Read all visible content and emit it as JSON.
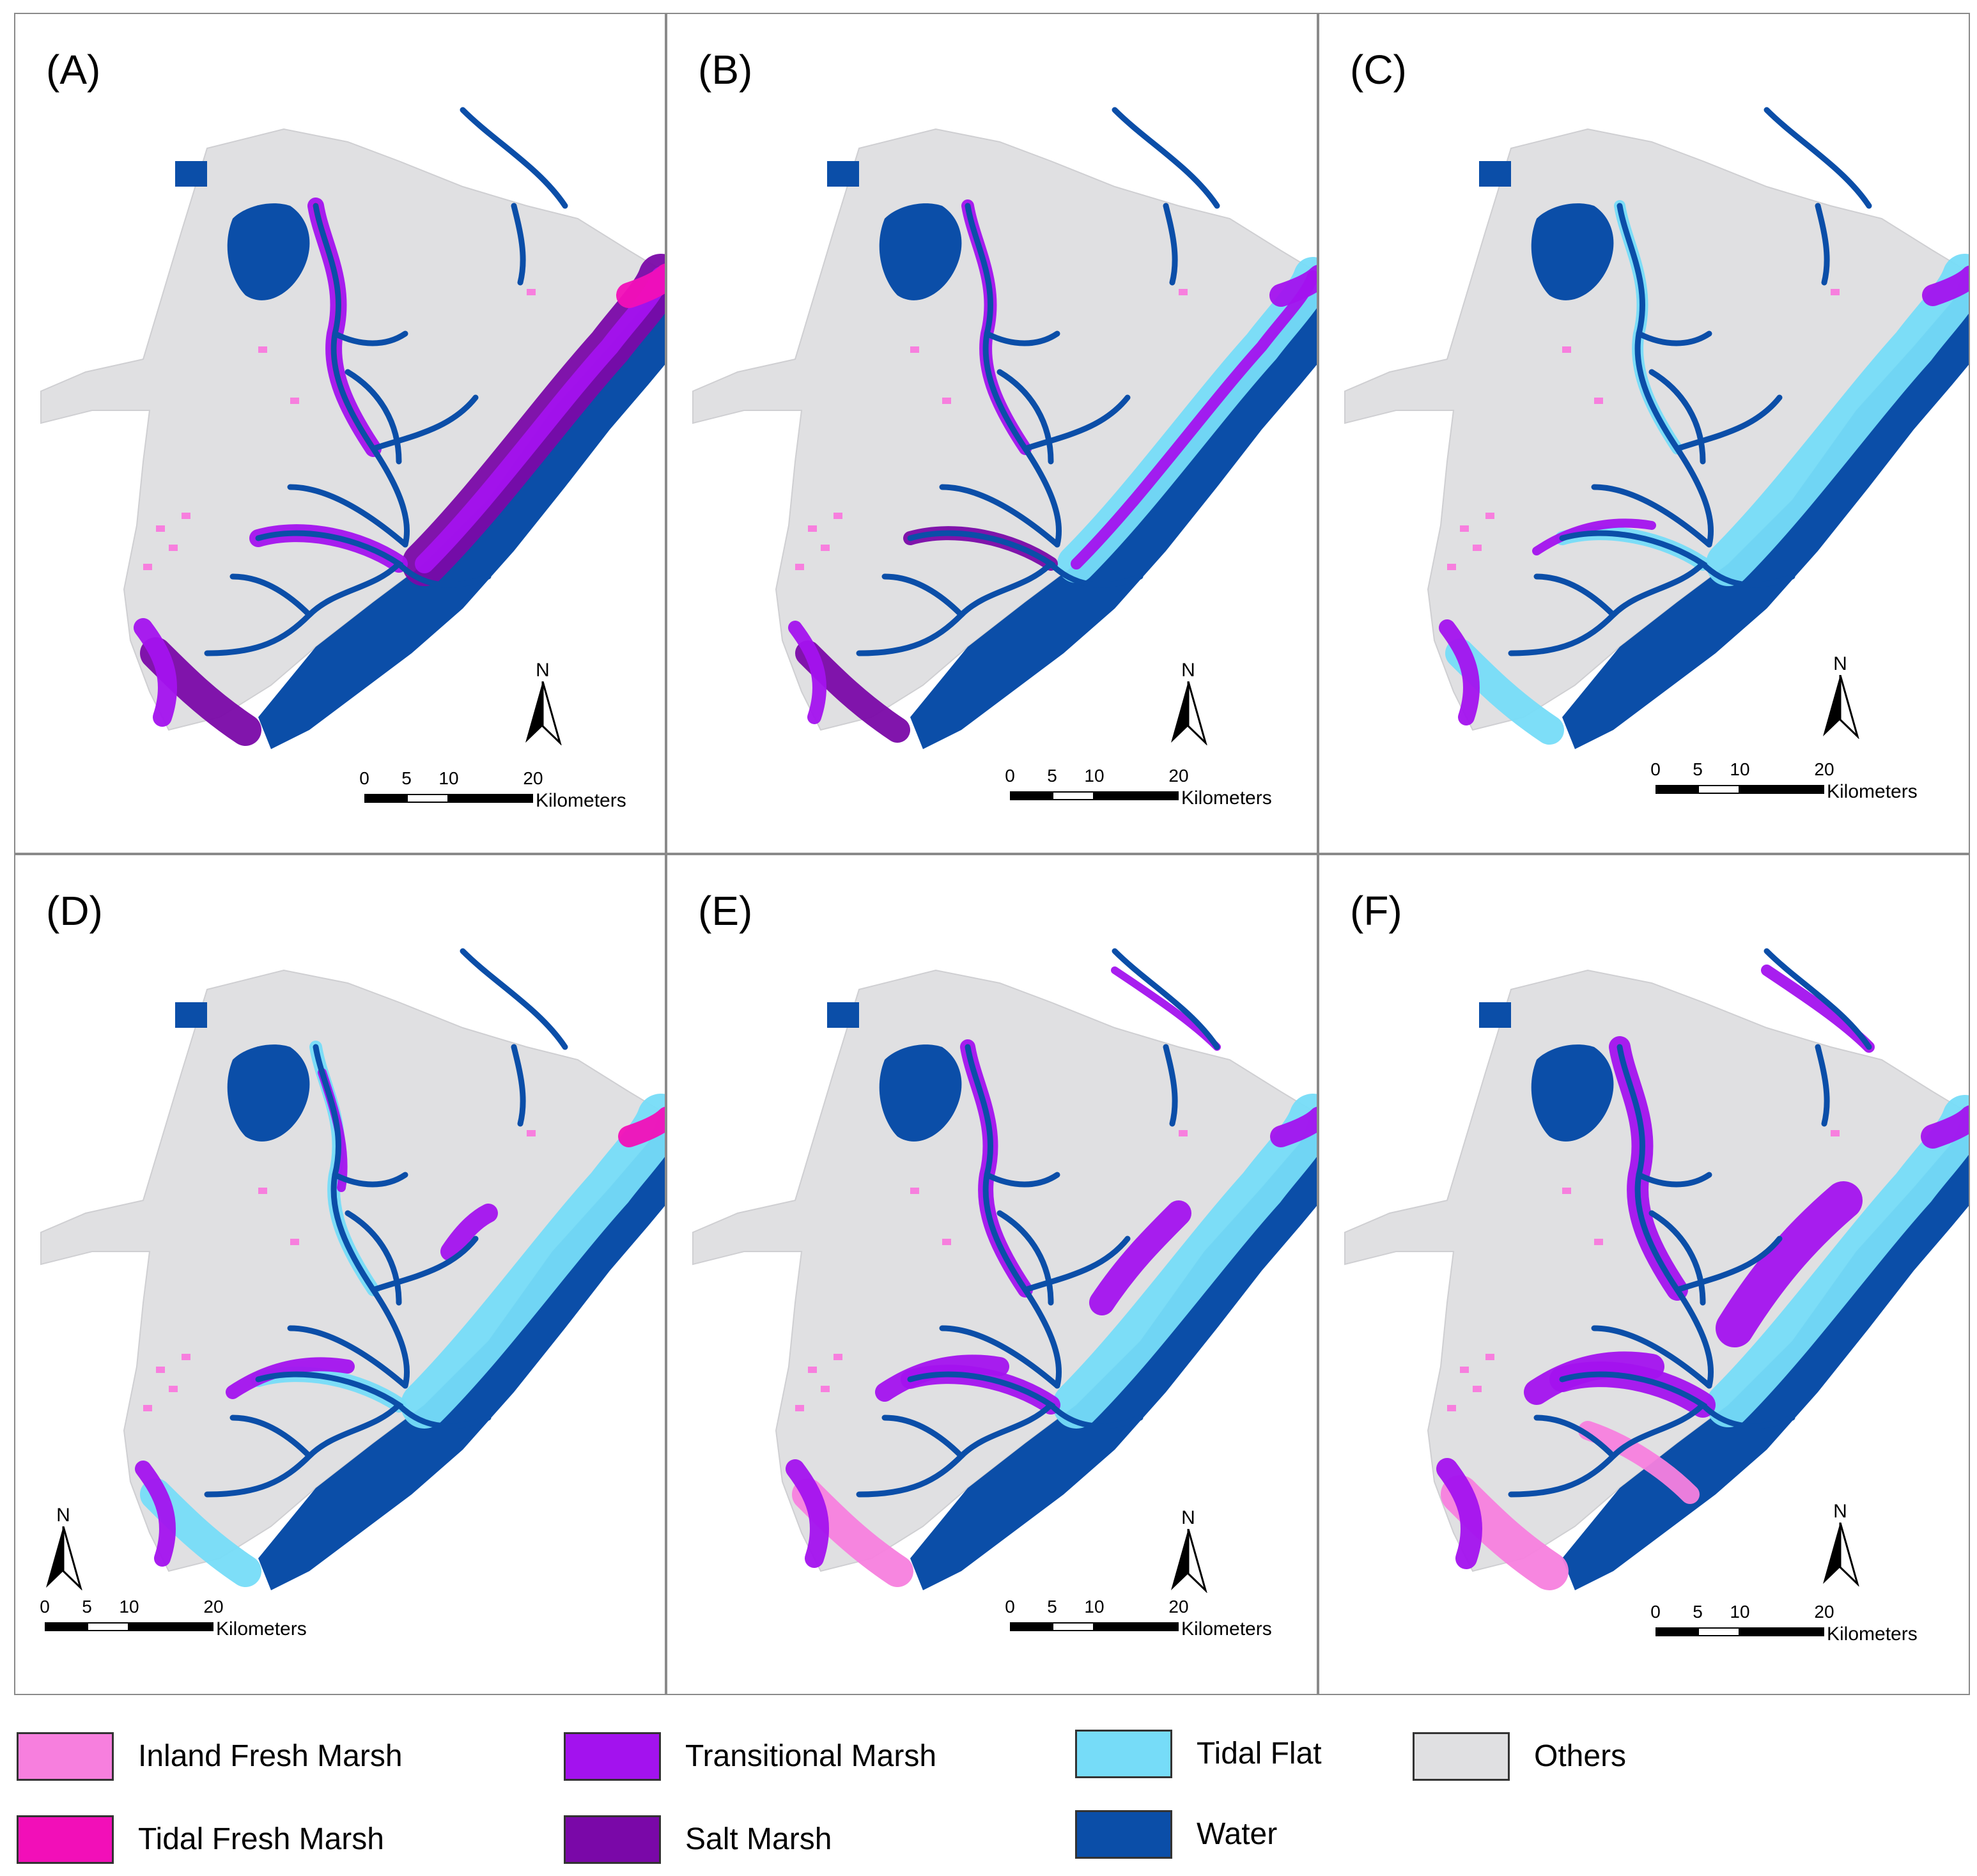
{
  "panels": [
    {
      "label": "(A)",
      "scale": {
        "ticks": [
          "0",
          "5",
          "10",
          "20"
        ],
        "unit": "Kilometers"
      },
      "north": "N"
    },
    {
      "label": "(B)",
      "scale": {
        "ticks": [
          "0",
          "5",
          "10",
          "20"
        ],
        "unit": "Kilometers"
      },
      "north": "N"
    },
    {
      "label": "(C)",
      "scale": {
        "ticks": [
          "0",
          "5",
          "10",
          "20"
        ],
        "unit": "Kilometers"
      },
      "north": "N"
    },
    {
      "label": "(D)",
      "scale": {
        "ticks": [
          "0",
          "5",
          "10",
          "20"
        ],
        "unit": "Kilometers"
      },
      "north": "N"
    },
    {
      "label": "(E)",
      "scale": {
        "ticks": [
          "0",
          "5",
          "10",
          "20"
        ],
        "unit": "Kilometers"
      },
      "north": "N"
    },
    {
      "label": "(F)",
      "scale": {
        "ticks": [
          "0",
          "5",
          "10",
          "20"
        ],
        "unit": "Kilometers"
      },
      "north": "N"
    }
  ],
  "legend": [
    {
      "label": "Inland Fresh Marsh",
      "color": "#f77fde"
    },
    {
      "label": "Tidal Fresh Marsh",
      "color": "#f20fb8"
    },
    {
      "label": "Transitional Marsh",
      "color": "#a312ee"
    },
    {
      "label": "Salt Marsh",
      "color": "#7a08a8"
    },
    {
      "label": "Tidal Flat",
      "color": "#76dcf8"
    },
    {
      "label": "Water",
      "color": "#0b4ea8"
    },
    {
      "label": "Others",
      "color": "#e0e0e2"
    }
  ]
}
